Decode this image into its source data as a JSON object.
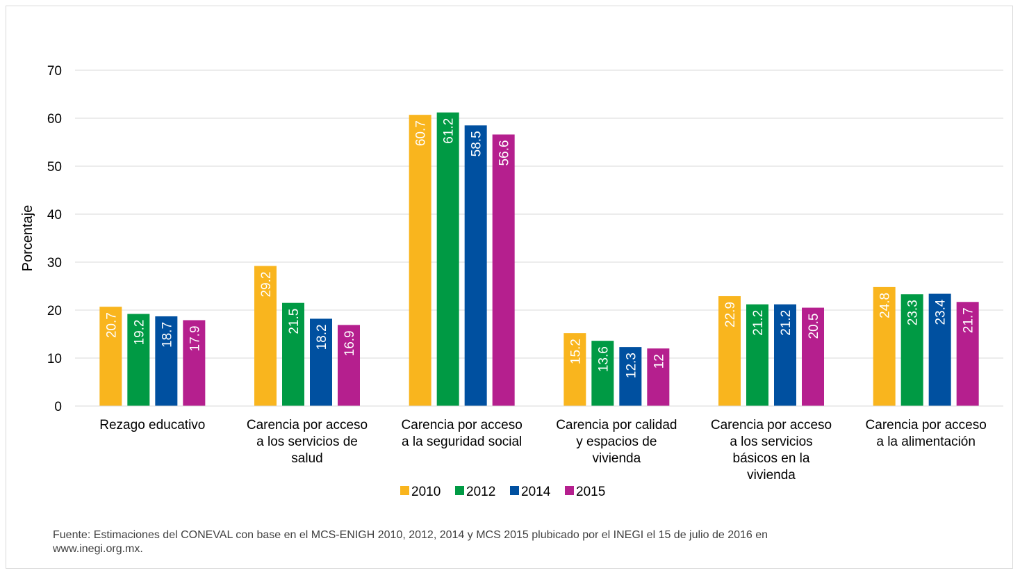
{
  "chart_data": {
    "type": "bar",
    "title": "",
    "xlabel": "",
    "ylabel": "Porcentaje",
    "ylim": [
      0,
      70
    ],
    "yticks": [
      0,
      10,
      20,
      30,
      40,
      50,
      60,
      70
    ],
    "grid": true,
    "legend_position": "bottom",
    "categories": [
      [
        "Rezago educativo"
      ],
      [
        "Carencia por acceso",
        "a los servicios de",
        "salud"
      ],
      [
        "Carencia por acceso",
        "a la seguridad social"
      ],
      [
        "Carencia por calidad",
        "y espacios de",
        "vivienda"
      ],
      [
        "Carencia por acceso",
        "a los servicios",
        "básicos en la",
        "vivienda"
      ],
      [
        "Carencia por acceso",
        "a la alimentación"
      ]
    ],
    "series": [
      {
        "name": "2010",
        "color": "#F9B51E",
        "values": [
          20.7,
          29.2,
          60.7,
          15.2,
          22.9,
          24.8
        ]
      },
      {
        "name": "2012",
        "color": "#009A44",
        "values": [
          19.2,
          21.5,
          61.2,
          13.6,
          21.2,
          23.3
        ]
      },
      {
        "name": "2014",
        "color": "#0050A0",
        "values": [
          18.7,
          18.2,
          58.5,
          12.3,
          21.2,
          23.4
        ]
      },
      {
        "name": "2015",
        "color": "#B51F8E",
        "values": [
          17.9,
          16.9,
          56.6,
          12,
          20.5,
          21.7
        ]
      }
    ]
  },
  "source_text": "Fuente: Estimaciones del CONEVAL con base en el MCS-ENIGH 2010, 2012, 2014 y MCS 2015 plubicado por el INEGI el 15 de julio de 2016 en www.inegi.org.mx."
}
